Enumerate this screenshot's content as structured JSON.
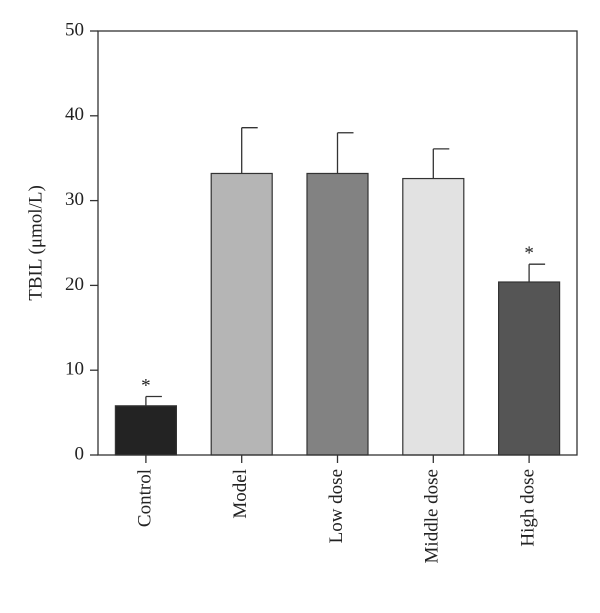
{
  "chart_data": {
    "type": "bar",
    "title": "",
    "xlabel": "",
    "ylabel": "TBIL (μmol/L)",
    "ylim": [
      0,
      50
    ],
    "yticks": [
      "0",
      "10",
      "20",
      "30",
      "40",
      "50"
    ],
    "categories": [
      "Control",
      "Model",
      "Low dose",
      "Middle dose",
      "High dose"
    ],
    "values": [
      5.8,
      33.2,
      33.2,
      32.6,
      20.4
    ],
    "errors": [
      1.1,
      5.4,
      4.8,
      3.5,
      2.1
    ],
    "significance": [
      "*",
      "",
      "",
      "",
      "*"
    ],
    "bar_colors": [
      "#232323",
      "#b5b5b5",
      "#828282",
      "#e2e2e2",
      "#555555"
    ],
    "grid": false,
    "legend": "none"
  }
}
